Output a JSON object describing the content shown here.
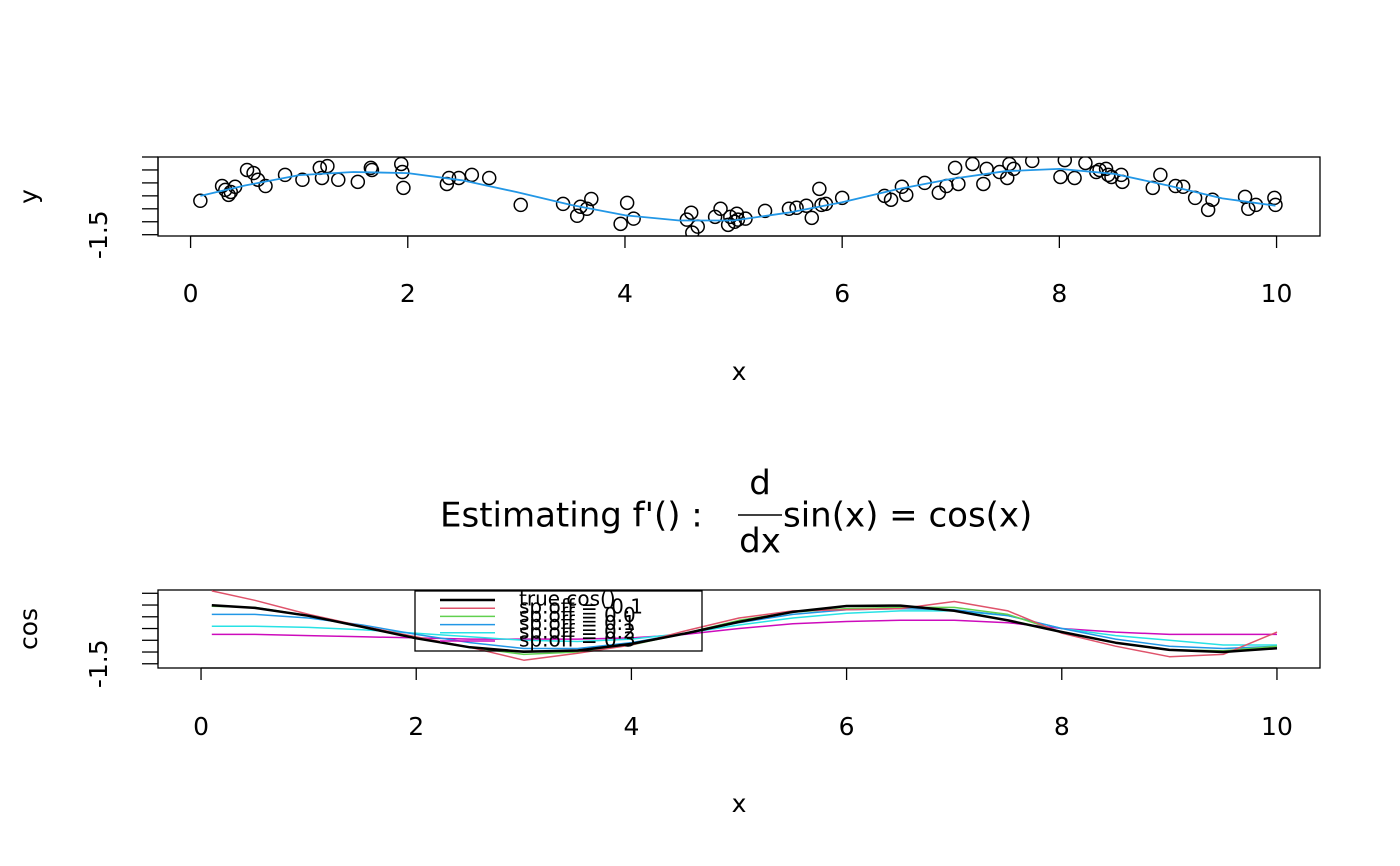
{
  "chart_data": [
    {
      "type": "scatter",
      "x_label": "x",
      "y_label": "y",
      "xlim": [
        -0.3,
        10.4
      ],
      "xticks": [
        0,
        2,
        4,
        6,
        8,
        10
      ],
      "ylim": [
        -1.55,
        1.5
      ],
      "yticks": [
        -1.5
      ],
      "yticks_unlabeled": [
        -1,
        -0.5,
        0,
        0.5,
        1,
        1.5
      ],
      "point_color": "#000000",
      "x": [
        0.09,
        0.29,
        0.32,
        0.35,
        0.37,
        0.41,
        0.52,
        0.58,
        0.62,
        0.69,
        0.87,
        1.03,
        1.19,
        1.21,
        1.26,
        1.36,
        1.54,
        1.66,
        1.67,
        1.94,
        1.95,
        1.96,
        2.36,
        2.38,
        2.47,
        2.59,
        2.75,
        3.04,
        3.43,
        3.56,
        3.59,
        3.65,
        3.69,
        3.96,
        4.02,
        4.08,
        4.57,
        4.61,
        4.62,
        4.67,
        4.83,
        4.88,
        4.95,
        4.97,
        5.01,
        5.03,
        5.04,
        5.11,
        5.29,
        5.51,
        5.58,
        5.67,
        5.72,
        5.79,
        5.81,
        5.85,
        6.0,
        6.39,
        6.45,
        6.55,
        6.59,
        6.76,
        6.89,
        6.96,
        7.04,
        7.07,
        7.2,
        7.3,
        7.33,
        7.45,
        7.52,
        7.54,
        7.58,
        7.75,
        8.01,
        8.05,
        8.14,
        8.24,
        8.34,
        8.37,
        8.43,
        8.45,
        8.48,
        8.57,
        8.58,
        8.86,
        8.93,
        9.07,
        9.14,
        9.25,
        9.37,
        9.41,
        9.71,
        9.74,
        9.81,
        9.98,
        9.99
      ],
      "y": [
        -0.19,
        0.38,
        0.23,
        0.04,
        0.15,
        0.35,
        1.0,
        0.88,
        0.62,
        0.38,
        0.81,
        0.62,
        1.08,
        0.69,
        1.15,
        0.62,
        0.54,
        1.08,
        1.0,
        1.23,
        0.92,
        0.31,
        0.46,
        0.69,
        0.69,
        0.81,
        0.69,
        -0.35,
        -0.31,
        -0.77,
        -0.42,
        -0.5,
        -0.12,
        -1.08,
        -0.27,
        -0.88,
        -0.92,
        -0.65,
        -1.42,
        -1.19,
        -0.81,
        -0.5,
        -1.12,
        -0.81,
        -1.0,
        -0.69,
        -0.92,
        -0.88,
        -0.58,
        -0.5,
        -0.46,
        -0.38,
        -0.85,
        0.27,
        -0.35,
        -0.31,
        -0.08,
        0.0,
        -0.15,
        0.35,
        0.04,
        0.5,
        0.12,
        0.38,
        1.08,
        0.46,
        1.23,
        0.46,
        1.04,
        0.92,
        0.69,
        1.23,
        1.04,
        1.35,
        0.73,
        1.38,
        0.69,
        1.27,
        0.92,
        1.0,
        1.04,
        0.81,
        0.73,
        0.81,
        0.54,
        0.31,
        0.81,
        0.38,
        0.35,
        -0.08,
        -0.54,
        -0.15,
        -0.04,
        -0.5,
        -0.35,
        -0.08,
        -0.35
      ],
      "fit": {
        "color": "#2297E6",
        "x": [
          0.09,
          0.5,
          1,
          1.5,
          2,
          2.5,
          3,
          3.5,
          4,
          4.5,
          5,
          5.5,
          6,
          6.5,
          7,
          7.5,
          8,
          8.5,
          9,
          9.5,
          9.99
        ],
        "values": [
          0.0,
          0.4,
          0.8,
          0.92,
          0.88,
          0.6,
          0.15,
          -0.35,
          -0.75,
          -0.95,
          -0.95,
          -0.65,
          -0.25,
          0.25,
          0.65,
          0.95,
          1.04,
          0.85,
          0.4,
          -0.1,
          -0.38
        ]
      }
    },
    {
      "type": "line",
      "title": {
        "prefix": "Estimating f'() :",
        "numerator": "d",
        "denominator": "dx",
        "rest": "sin(x) = cos(x)"
      },
      "x_label": "x",
      "y_label": "cos",
      "xlim": [
        -0.4,
        10.4
      ],
      "xticks": [
        0,
        2,
        4,
        6,
        8,
        10
      ],
      "ylim": [
        -1.68,
        1.64
      ],
      "yticks": [
        -1.5
      ],
      "yticks_unlabeled": [
        -1,
        -0.5,
        0,
        0.5,
        1,
        1.5
      ],
      "x": [
        0.1,
        0.5,
        1,
        1.5,
        2,
        2.5,
        3,
        3.5,
        4,
        4.5,
        5,
        5.5,
        6,
        6.5,
        7,
        7.5,
        8,
        8.5,
        9,
        9.5,
        10
      ],
      "series": [
        {
          "name": "true cos()",
          "color": "#000000",
          "width": 2.5,
          "values": [
            0.995,
            0.878,
            0.54,
            0.071,
            -0.416,
            -0.801,
            -0.99,
            -0.936,
            -0.654,
            -0.211,
            0.284,
            0.709,
            0.96,
            0.977,
            0.754,
            0.347,
            -0.146,
            -0.602,
            -0.911,
            -0.997,
            -0.839
          ]
        },
        {
          "name": "sp.off = -0.1",
          "color": "#DF536B",
          "width": 1.5,
          "values": [
            1.6,
            1.2,
            0.6,
            0.1,
            -0.35,
            -0.8,
            -1.35,
            -1.05,
            -0.7,
            -0.1,
            0.45,
            0.75,
            0.8,
            0.85,
            1.15,
            0.75,
            -0.2,
            -0.75,
            -1.2,
            -1.1,
            -0.15
          ]
        },
        {
          "name": "sp.off = 0.0",
          "color": "#61D04F",
          "width": 1.5,
          "values": [
            0.95,
            0.9,
            0.55,
            0.1,
            -0.4,
            -0.8,
            -1.1,
            -1.0,
            -0.7,
            -0.2,
            0.35,
            0.7,
            0.85,
            0.9,
            0.9,
            0.6,
            -0.15,
            -0.6,
            -0.9,
            -0.95,
            -0.75
          ]
        },
        {
          "name": "sp.off = 0.1",
          "color": "#2297E6",
          "width": 1.5,
          "values": [
            0.6,
            0.6,
            0.45,
            0.15,
            -0.25,
            -0.6,
            -0.85,
            -0.85,
            -0.6,
            -0.2,
            0.25,
            0.6,
            0.8,
            0.85,
            0.8,
            0.55,
            0.0,
            -0.45,
            -0.75,
            -0.85,
            -0.75
          ]
        },
        {
          "name": "sp.off = 0.2",
          "color": "#28E2E5",
          "width": 1.5,
          "values": [
            0.1,
            0.1,
            0.05,
            -0.05,
            -0.2,
            -0.35,
            -0.5,
            -0.55,
            -0.45,
            -0.2,
            0.15,
            0.45,
            0.65,
            0.75,
            0.75,
            0.55,
            0.0,
            -0.3,
            -0.5,
            -0.7,
            -0.7
          ]
        },
        {
          "name": "sp.off = 0.3",
          "color": "#CD0BBC",
          "width": 1.5,
          "values": [
            -0.25,
            -0.25,
            -0.3,
            -0.35,
            -0.4,
            -0.45,
            -0.45,
            -0.45,
            -0.4,
            -0.25,
            0.0,
            0.2,
            0.3,
            0.35,
            0.35,
            0.25,
            0.0,
            -0.15,
            -0.25,
            -0.25,
            -0.25
          ]
        }
      ]
    }
  ]
}
